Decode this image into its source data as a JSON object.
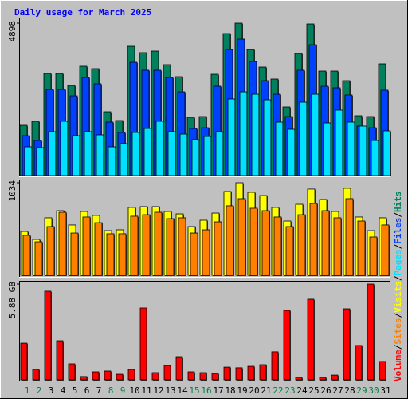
{
  "chart_data": [
    {
      "type": "bar",
      "title": "Daily usage for March 2025",
      "series": [
        {
          "name": "Hits",
          "color": "#00805c",
          "values": [
            1615,
            1744,
            3282,
            3282,
            2897,
            3513,
            3436,
            2051,
            1769,
            4154,
            3949,
            4000,
            3564,
            3179,
            1872,
            1897,
            3256,
            4564,
            4898,
            4051,
            3487,
            3103,
            2205,
            3923,
            4872,
            3359,
            3359,
            3051,
            1923,
            1897,
            3590
          ]
        },
        {
          "name": "Files",
          "color": "#0040ff",
          "values": [
            1282,
            1128,
            2769,
            2769,
            2564,
            3154,
            2949,
            1718,
            1385,
            3641,
            3385,
            3385,
            3154,
            2692,
            1513,
            1538,
            2872,
            4051,
            4385,
            3667,
            3051,
            2615,
            1897,
            3385,
            4205,
            2872,
            2821,
            2590,
            1590,
            1538,
            2744
          ]
        },
        {
          "name": "Pages",
          "color": "#00e0ff",
          "values": [
            923,
            897,
            1410,
            1744,
            1282,
            1410,
            1308,
            923,
            1026,
            1385,
            1513,
            1744,
            1410,
            1333,
            1154,
            1256,
            1410,
            2462,
            2692,
            2615,
            2436,
            1718,
            1487,
            2359,
            2615,
            1692,
            2103,
            1718,
            1590,
            1128,
            1436
          ]
        }
      ],
      "ylim": [
        0,
        4898
      ],
      "yticks": [
        4898
      ]
    },
    {
      "type": "bar",
      "series": [
        {
          "name": "Visits",
          "color": "#ffff00",
          "values": [
            490,
            401,
            642,
            722,
            562,
            713,
            669,
            499,
            508,
            758,
            767,
            767,
            713,
            686,
            544,
            615,
            695,
            936,
            1034,
            927,
            891,
            758,
            606,
            793,
            963,
            847,
            713,
            972,
            651,
            499,
            642
          ]
        },
        {
          "name": "Sites",
          "color": "#ff8000",
          "values": [
            446,
            374,
            544,
            704,
            472,
            651,
            588,
            464,
            464,
            660,
            677,
            704,
            633,
            642,
            472,
            508,
            597,
            776,
            856,
            749,
            722,
            651,
            544,
            677,
            802,
            722,
            642,
            856,
            606,
            428,
            562
          ]
        }
      ],
      "ylim": [
        0,
        1034
      ],
      "yticks": [
        1034
      ]
    },
    {
      "type": "bar",
      "categories": [
        "1",
        "2",
        "3",
        "4",
        "5",
        "6",
        "7",
        "8",
        "9",
        "10",
        "11",
        "12",
        "13",
        "14",
        "15",
        "16",
        "17",
        "18",
        "19",
        "20",
        "21",
        "22",
        "23",
        "24",
        "25",
        "26",
        "27",
        "28",
        "29",
        "30",
        "31"
      ],
      "category_colors": [
        "#008040",
        "#008040",
        "#000000",
        "#000000",
        "#000000",
        "#000000",
        "#000000",
        "#008040",
        "#008040",
        "#000000",
        "#000000",
        "#000000",
        "#000000",
        "#000000",
        "#008040",
        "#008040",
        "#000000",
        "#000000",
        "#000000",
        "#000000",
        "#000000",
        "#008040",
        "#008040",
        "#000000",
        "#000000",
        "#000000",
        "#000000",
        "#000000",
        "#008040",
        "#008040",
        "#000000"
      ],
      "legend_separator": "/",
      "series": [
        {
          "name": "Volume",
          "color": "#ff0000",
          "values": [
            2.25,
            0.64,
            5.44,
            2.4,
            0.98,
            0.2,
            0.49,
            0.54,
            0.34,
            0.64,
            4.41,
            0.44,
            0.88,
            1.42,
            0.49,
            0.44,
            0.39,
            0.78,
            0.74,
            0.83,
            0.93,
            1.72,
            4.26,
            0.15,
            4.95,
            0.15,
            0.29,
            4.36,
            2.11,
            5.88,
            1.13
          ]
        }
      ],
      "ylim": [
        0,
        5.88
      ],
      "yticks": [
        {
          "value": 5.88,
          "label": "5.88 GB"
        }
      ]
    }
  ]
}
